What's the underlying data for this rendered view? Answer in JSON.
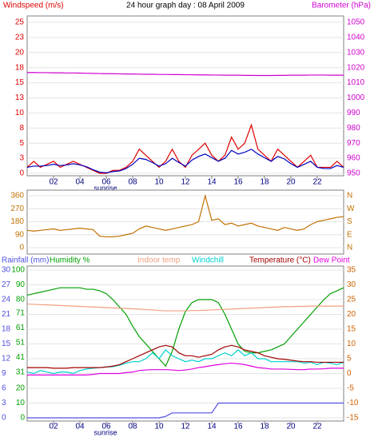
{
  "chart_data": [
    {
      "type": "line",
      "title": "24 hour graph day : 08 April 2009",
      "y_label": "Windspeed (m/s)",
      "y2_label": "Barometer (hPa)",
      "annotation": "sunrise",
      "grid": true,
      "x": [
        0,
        0.5,
        1,
        1.5,
        2,
        2.5,
        3,
        3.5,
        4,
        4.5,
        5,
        5.5,
        6,
        6.5,
        7,
        7.5,
        8,
        8.5,
        9,
        9.5,
        10,
        10.5,
        11,
        11.5,
        12,
        12.5,
        13,
        13.5,
        14,
        14.5,
        15,
        15.5,
        16,
        16.5,
        17,
        17.5,
        18,
        18.5,
        19,
        19.5,
        20,
        20.5,
        21,
        21.5,
        22,
        22.5,
        23,
        23.5,
        24
      ],
      "xlim": [
        0,
        24
      ],
      "xticks": [
        {
          "value": 2,
          "label": "02"
        },
        {
          "value": 4,
          "label": "04"
        },
        {
          "value": 6,
          "label": "06"
        },
        {
          "value": 8,
          "label": "08"
        },
        {
          "value": 10,
          "label": "10"
        },
        {
          "value": 12,
          "label": "12"
        },
        {
          "value": 14,
          "label": "14"
        },
        {
          "value": 16,
          "label": "16"
        },
        {
          "value": 18,
          "label": "18"
        },
        {
          "value": 20,
          "label": "20"
        },
        {
          "value": 22,
          "label": "22"
        }
      ],
      "ylim": [
        0,
        25
      ],
      "yticks": [
        0,
        {
          "value": 2.5,
          "label": "3"
        },
        5,
        {
          "value": 7.5,
          "label": "8"
        },
        10,
        {
          "value": 12.5,
          "label": "13"
        },
        15,
        {
          "value": 17.5,
          "label": "18"
        },
        20,
        {
          "value": 22.5,
          "label": "23"
        },
        25
      ],
      "y2lim": [
        950,
        1050
      ],
      "y2ticks": [
        950,
        960,
        970,
        980,
        990,
        1000,
        1010,
        1020,
        1030,
        1040,
        1050
      ],
      "series": [
        {
          "color": "#e00000",
          "values": [
            1,
            2,
            1,
            1.5,
            2,
            1,
            1.5,
            2,
            1.5,
            1,
            0.5,
            0,
            0,
            0.5,
            0.5,
            1,
            2,
            4,
            3,
            2,
            1,
            2,
            4,
            2,
            1,
            3,
            4,
            5,
            3,
            2,
            3,
            6,
            4,
            5,
            8,
            4,
            3,
            2,
            4,
            3,
            2,
            1,
            2,
            3,
            1,
            1,
            1,
            2,
            1
          ]
        },
        {
          "color": "#0000c0",
          "values": [
            1,
            1.2,
            1.2,
            1.3,
            1.5,
            1.3,
            1.4,
            1.6,
            1.4,
            1.1,
            0.6,
            0.2,
            0.1,
            0.3,
            0.4,
            0.8,
            1.5,
            2.5,
            2.3,
            1.8,
            1.2,
            1.6,
            2.5,
            1.8,
            1.2,
            2.2,
            2.8,
            3.2,
            2.6,
            2,
            2.5,
            3.8,
            3.2,
            3.5,
            4,
            3.2,
            2.6,
            2,
            2.8,
            2.4,
            1.6,
            1,
            1.5,
            2,
            1,
            0.8,
            0.8,
            1.3,
            1
          ]
        },
        {
          "color": "#d000d0",
          "axis": "y2",
          "values": [
            1016.8,
            1016.8,
            1016.7,
            1016.7,
            1016.6,
            1016.6,
            1016.5,
            1016.5,
            1016.4,
            1016.3,
            1016.2,
            1016.1,
            1016,
            1016,
            1015.9,
            1015.8,
            1015.8,
            1015.7,
            1015.6,
            1015.6,
            1015.5,
            1015.5,
            1015.4,
            1015.4,
            1015.3,
            1015.3,
            1015.2,
            1015.2,
            1015.1,
            1015.1,
            1015,
            1015,
            1015,
            1014.9,
            1014.9,
            1014.8,
            1014.8,
            1014.8,
            1014.9,
            1014.9,
            1015,
            1015,
            1015,
            1015.1,
            1015.1,
            1015.1,
            1015,
            1015,
            1015
          ]
        }
      ]
    },
    {
      "type": "line",
      "grid": true,
      "x": [
        0,
        0.5,
        1,
        1.5,
        2,
        2.5,
        3,
        3.5,
        4,
        4.5,
        5,
        5.5,
        6,
        6.5,
        7,
        7.5,
        8,
        8.5,
        9,
        9.5,
        10,
        10.5,
        11,
        11.5,
        12,
        12.5,
        13,
        13.5,
        14,
        14.5,
        15,
        15.5,
        16,
        16.5,
        17,
        17.5,
        18,
        18.5,
        19,
        19.5,
        20,
        20.5,
        21,
        21.5,
        22,
        22.5,
        23,
        23.5,
        24
      ],
      "xlim": [
        0,
        24
      ],
      "ylim": [
        0,
        360
      ],
      "yticks": [
        0,
        90,
        180,
        270,
        360
      ],
      "y2lim": [
        0,
        360
      ],
      "y2ticks": [
        {
          "value": 0,
          "label": "N"
        },
        {
          "value": 90,
          "label": "E"
        },
        {
          "value": 180,
          "label": "S"
        },
        {
          "value": 270,
          "label": "W"
        },
        {
          "value": 360,
          "label": "N"
        }
      ],
      "series": [
        {
          "color": "#c07000",
          "values": [
            120,
            115,
            120,
            125,
            130,
            120,
            125,
            130,
            135,
            130,
            125,
            80,
            75,
            75,
            80,
            90,
            100,
            130,
            150,
            140,
            130,
            120,
            130,
            140,
            150,
            160,
            180,
            360,
            190,
            200,
            160,
            170,
            150,
            160,
            170,
            150,
            140,
            130,
            120,
            140,
            130,
            120,
            130,
            160,
            180,
            190,
            200,
            210,
            215
          ]
        }
      ]
    },
    {
      "type": "line",
      "annotation": "sunrise",
      "grid": true,
      "x": [
        0,
        0.5,
        1,
        1.5,
        2,
        2.5,
        3,
        3.5,
        4,
        4.5,
        5,
        5.5,
        6,
        6.5,
        7,
        7.5,
        8,
        8.5,
        9,
        9.5,
        10,
        10.5,
        11,
        11.5,
        12,
        12.5,
        13,
        13.5,
        14,
        14.5,
        15,
        15.5,
        16,
        16.5,
        17,
        17.5,
        18,
        18.5,
        19,
        19.5,
        20,
        20.5,
        21,
        21.5,
        22,
        22.5,
        23,
        23.5,
        24
      ],
      "xlim": [
        0,
        24
      ],
      "xticks": [
        {
          "value": 2,
          "label": "02"
        },
        {
          "value": 4,
          "label": "04"
        },
        {
          "value": 6,
          "label": "06"
        },
        {
          "value": 8,
          "label": "08"
        },
        {
          "value": 10,
          "label": "10"
        },
        {
          "value": 12,
          "label": "12"
        },
        {
          "value": 14,
          "label": "14"
        },
        {
          "value": 16,
          "label": "16"
        },
        {
          "value": 18,
          "label": "18"
        },
        {
          "value": 20,
          "label": "20"
        },
        {
          "value": 22,
          "label": "22"
        }
      ],
      "ylim": [
        0,
        30
      ],
      "yticks": [
        0,
        3,
        6,
        9,
        12,
        15,
        18,
        21,
        24,
        27,
        30
      ],
      "y2lim": [
        -15,
        35
      ],
      "y2ticks": [
        -15,
        -10,
        -5,
        0,
        5,
        10,
        15,
        20,
        25,
        30,
        35
      ],
      "y3lim": [
        0,
        100
      ],
      "y3ticks": [
        0,
        10,
        20,
        31,
        41,
        51,
        61,
        71,
        80,
        90,
        100
      ],
      "series": [
        {
          "name": "Rainfall (mm)",
          "color": "#5050e0",
          "values": [
            0,
            0,
            0,
            0,
            0,
            0,
            0,
            0,
            0,
            0,
            0,
            0,
            0,
            0,
            0,
            0,
            0,
            0,
            0,
            0,
            0,
            0.3,
            1,
            1,
            1,
            1,
            1,
            1,
            1,
            3,
            3,
            3,
            3,
            3,
            3,
            3,
            3,
            3,
            3,
            3,
            3,
            3,
            3,
            3,
            3,
            3,
            3,
            3,
            3
          ]
        },
        {
          "name": "Humidity %",
          "color": "#00a000",
          "axis": "y3",
          "values": [
            83,
            84,
            85,
            86,
            87,
            88,
            88,
            88,
            88,
            87,
            87,
            86,
            84,
            80,
            75,
            70,
            62,
            55,
            50,
            45,
            40,
            35,
            45,
            60,
            72,
            78,
            80,
            80,
            80,
            78,
            70,
            60,
            50,
            45,
            44,
            44,
            45,
            46,
            48,
            50,
            55,
            60,
            65,
            70,
            75,
            80,
            84,
            86,
            88
          ]
        },
        {
          "name": "Indoor temp",
          "color": "#f0a080",
          "axis": "y2",
          "values": [
            23.5,
            23.4,
            23.3,
            23.2,
            23.1,
            23,
            22.9,
            22.8,
            22.7,
            22.6,
            22.5,
            22.4,
            22.3,
            22.2,
            22.1,
            22,
            21.9,
            21.8,
            21.6,
            21.5,
            21.3,
            21.2,
            21.2,
            21.2,
            21.2,
            21.3,
            21.3,
            21.4,
            21.5,
            21.6,
            21.7,
            21.8,
            21.9,
            22,
            22.1,
            22.2,
            22.3,
            22.4,
            22.5,
            22.6,
            22.6,
            22.7,
            22.7,
            22.8,
            22.8,
            22.8,
            22.8,
            22.8,
            22.8
          ]
        },
        {
          "name": "Windchill",
          "color": "#00d0d0",
          "axis": "y2",
          "values": [
            0.5,
            0,
            1,
            0.5,
            0,
            0.5,
            0.5,
            0,
            1,
            1.5,
            1.8,
            2,
            2.2,
            2.3,
            2.8,
            3.5,
            4,
            4,
            5,
            7,
            5,
            8,
            6,
            5,
            4,
            4.5,
            4,
            5,
            5,
            6,
            7,
            6,
            8,
            6,
            7,
            5,
            5,
            4,
            4,
            4,
            4,
            4,
            3.5,
            3.8,
            3,
            3.8,
            3.5,
            3,
            3.8
          ]
        },
        {
          "name": "Temperature (°C)",
          "color": "#a00000",
          "axis": "y2",
          "values": [
            2,
            2,
            2,
            2,
            1.8,
            1.8,
            1.8,
            2,
            2,
            2,
            2,
            2,
            2.2,
            2.5,
            3,
            4,
            5,
            6,
            7,
            8,
            9,
            9.5,
            9,
            7,
            6,
            6,
            5.5,
            6,
            6.5,
            8,
            9,
            9.5,
            9,
            8,
            7.5,
            7,
            6,
            5.5,
            5,
            4.8,
            4.5,
            4.2,
            4,
            4,
            3.8,
            3.8,
            3.8,
            3.8,
            3.8
          ]
        },
        {
          "name": "Dew Point",
          "color": "#e000e0",
          "axis": "y2",
          "values": [
            -0.5,
            -0.5,
            -0.5,
            -0.5,
            -0.5,
            -0.5,
            -0.5,
            -0.5,
            -0.5,
            -0.5,
            -0.3,
            0,
            0,
            0,
            0,
            0.3,
            0.5,
            1,
            1.2,
            1.3,
            1.3,
            1.3,
            1.2,
            1,
            1.2,
            1.5,
            2,
            2.3,
            2.7,
            3,
            3.3,
            3.5,
            3.3,
            3,
            2.5,
            2,
            1.8,
            1.5,
            1.5,
            1.5,
            1.4,
            1.3,
            1.3,
            1.5,
            1.5,
            1.6,
            1.8,
            1.8,
            1.8
          ]
        }
      ]
    }
  ]
}
